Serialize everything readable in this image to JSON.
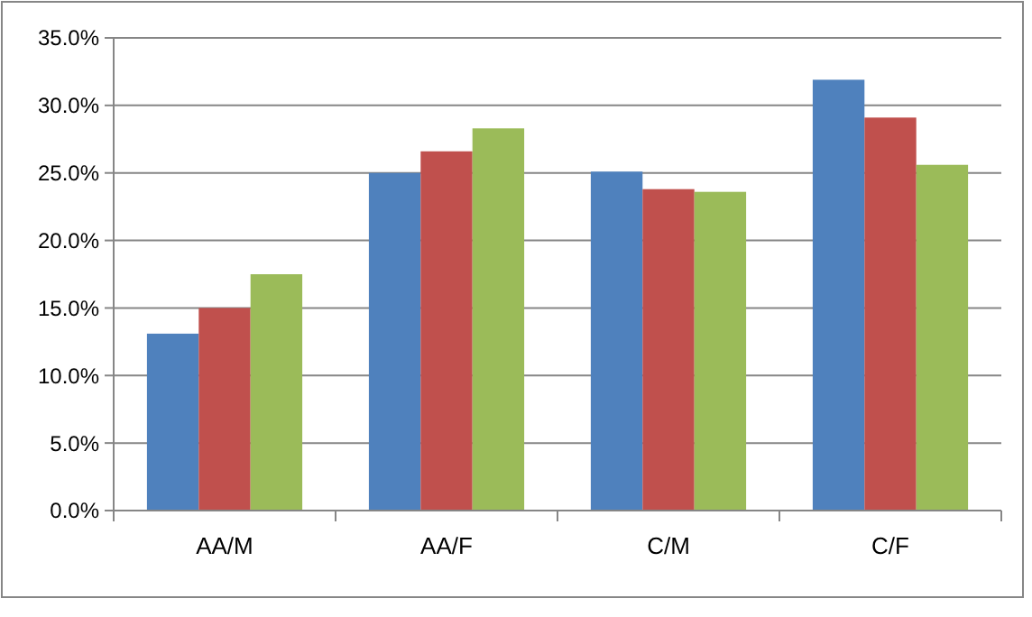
{
  "chart_data": {
    "type": "bar",
    "categories": [
      "AA/M",
      "AA/F",
      "C/M",
      "C/F"
    ],
    "series": [
      {
        "color": "#4f81bd",
        "values": [
          13.1,
          25.0,
          25.1,
          31.9
        ]
      },
      {
        "color": "#c0504d",
        "values": [
          15.0,
          26.6,
          23.8,
          29.1
        ]
      },
      {
        "color": "#9bbb59",
        "values": [
          17.5,
          28.3,
          23.6,
          25.6
        ]
      }
    ],
    "ylim": [
      0,
      35
    ],
    "yticks": [
      {
        "value": 0,
        "label": "0.0%"
      },
      {
        "value": 5,
        "label": "5.0%"
      },
      {
        "value": 10,
        "label": "10.0%"
      },
      {
        "value": 15,
        "label": "15.0%"
      },
      {
        "value": 20,
        "label": "20.0%"
      },
      {
        "value": 25,
        "label": "25.0%"
      },
      {
        "value": 30,
        "label": "30.0%"
      },
      {
        "value": 35,
        "label": "35.0%"
      }
    ],
    "grid": "y"
  }
}
